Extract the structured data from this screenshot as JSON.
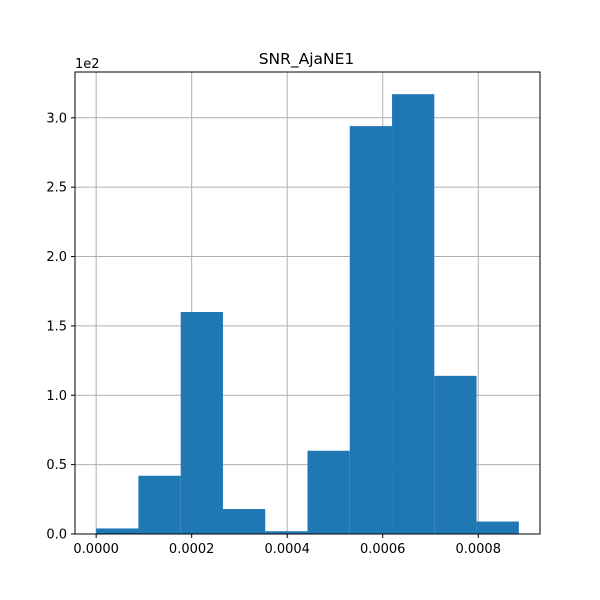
{
  "chart_data": {
    "type": "bar",
    "title": "SNR_AjaNE1",
    "xlabel": "",
    "ylabel": "",
    "y_scale_label": "1e2",
    "grid": true,
    "legend": "none",
    "bar_color": "#1f77b4",
    "grid_color": "#b0b0b0",
    "bin_edges": [
      0.0,
      8.85e-05,
      0.000177,
      0.0002655,
      0.000354,
      0.0004425,
      0.000531,
      0.0006195,
      0.000708,
      0.0007965,
      0.000885
    ],
    "values": [
      4,
      42,
      160,
      18,
      2,
      60,
      294,
      317,
      114,
      9
    ],
    "xlim": [
      -4.43e-05,
      0.0009293
    ],
    "ylim": [
      0,
      333
    ],
    "x_ticks": [
      {
        "value": 0.0,
        "label": "0.0000"
      },
      {
        "value": 0.0002,
        "label": "0.0002"
      },
      {
        "value": 0.0004,
        "label": "0.0004"
      },
      {
        "value": 0.0006,
        "label": "0.0006"
      },
      {
        "value": 0.0008,
        "label": "0.0008"
      }
    ],
    "y_ticks": [
      {
        "value": 0,
        "label": "0.0"
      },
      {
        "value": 50,
        "label": "0.5"
      },
      {
        "value": 100,
        "label": "1.0"
      },
      {
        "value": 150,
        "label": "1.5"
      },
      {
        "value": 200,
        "label": "2.0"
      },
      {
        "value": 250,
        "label": "2.5"
      },
      {
        "value": 300,
        "label": "3.0"
      }
    ]
  }
}
